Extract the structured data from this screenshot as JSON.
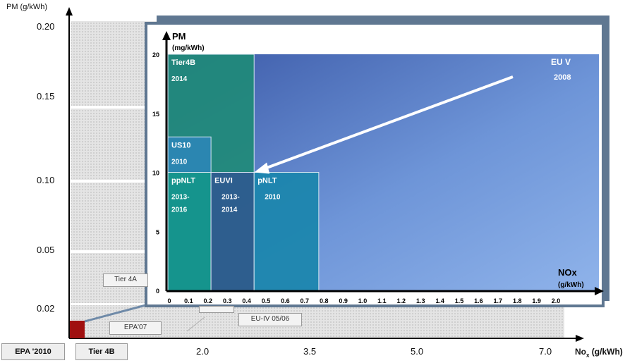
{
  "outer": {
    "y_axis_label": "PM (g/kWh)",
    "y_ticks": [
      "0.20",
      "0.15",
      "0.10",
      "0.05",
      "0.02"
    ],
    "x_ticks": [
      "2.0",
      "3.5",
      "5.0",
      "7.0"
    ],
    "x_axis_label_main": "No",
    "x_axis_label_sub": "x",
    "x_axis_label_unit": " (g/kWh)",
    "boxes": {
      "tier4a": "Tier 4A",
      "epa07": "EPA'07",
      "euiv": "EU-IV 05/06",
      "epa2010": "EPA '2010",
      "tier4b": "Tier 4B"
    },
    "highlight_color": "#a01010"
  },
  "chart_data": {
    "type": "heatmap",
    "title": "",
    "xlabel": "NOx (g/kWh)",
    "ylabel": "PM (mg/kWh)",
    "xlim": [
      0,
      2.0
    ],
    "ylim": [
      0,
      20
    ],
    "x_ticks": [
      "0",
      "0.1",
      "0.2",
      "0.3",
      "0.4",
      "0.5",
      "0.6",
      "0.7",
      "0.8",
      "0.9",
      "1.0",
      "1.1",
      "1.2",
      "1.3",
      "1.4",
      "1.5",
      "1.6",
      "1.7",
      "1.8",
      "1.9",
      "2.0"
    ],
    "y_ticks": [
      "0",
      "5",
      "10",
      "15",
      "20"
    ],
    "ylabel_main": "PM",
    "ylabel_unit": "(mg/kWh)",
    "xlabel_main": "NOx",
    "xlabel_unit": "(g/kWh)",
    "regions": [
      {
        "name": "Tier4B",
        "year": "2014",
        "x": [
          0,
          0.4
        ],
        "y": [
          0,
          20
        ],
        "color": "#1f8a78"
      },
      {
        "name": "US10",
        "year": "2010",
        "x": [
          0,
          0.2
        ],
        "y": [
          0,
          13
        ],
        "color": "#2c86b5"
      },
      {
        "name": "ppNLT",
        "year": "2013-2016",
        "year_lines": [
          "2013-",
          "2016"
        ],
        "x": [
          0,
          0.2
        ],
        "y": [
          0,
          10
        ],
        "color": "#14968a"
      },
      {
        "name": "EUVI",
        "year": "2013-2014",
        "year_lines": [
          "2013-",
          "2014"
        ],
        "x": [
          0.2,
          0.4
        ],
        "y": [
          0,
          10
        ],
        "color": "#2f5a8f"
      },
      {
        "name": "pNLT",
        "year": "2010",
        "x": [
          0.4,
          0.7
        ],
        "y": [
          0,
          10
        ],
        "color": "#1a86ad"
      }
    ],
    "annotation": {
      "label": "EU V",
      "year": "2008",
      "point": [
        2.0,
        20
      ],
      "arrow_to": [
        0.4,
        10
      ]
    }
  }
}
